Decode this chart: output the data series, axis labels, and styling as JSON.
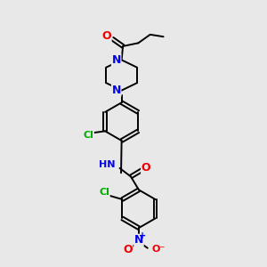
{
  "bg_color": "#e8e8e8",
  "bond_color": "#000000",
  "bond_width": 1.4,
  "atom_colors": {
    "N": "#0000ee",
    "O": "#ee0000",
    "Cl": "#00aa00",
    "C": "#000000"
  },
  "font_size": 8,
  "fig_width": 3.0,
  "fig_height": 3.0,
  "dpi": 100,
  "xlim": [
    0,
    10
  ],
  "ylim": [
    0,
    10
  ]
}
